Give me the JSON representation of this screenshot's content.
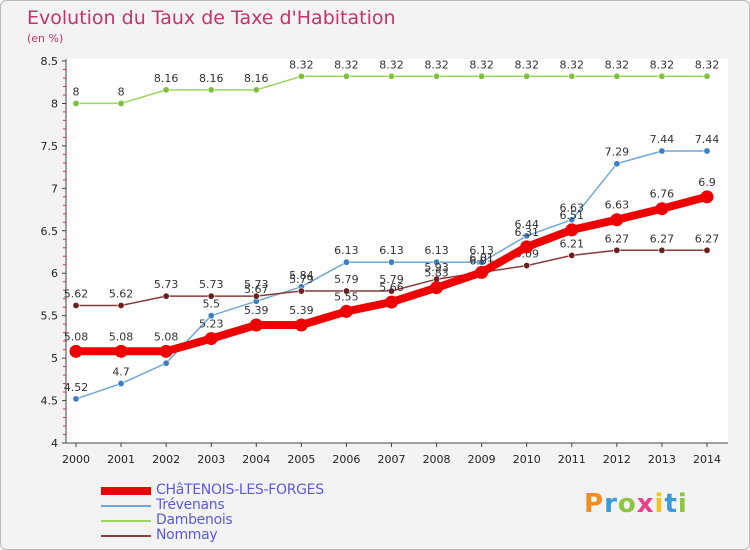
{
  "chart_data": {
    "type": "line",
    "title": "Evolution du Taux de Taxe d'Habitation",
    "ylabel": "(en %)",
    "xlabel": "",
    "ylim": [
      4,
      8.5
    ],
    "y_ticks": [
      "4",
      "4.5",
      "5",
      "5.5",
      "6",
      "6.5",
      "7",
      "7.5",
      "8",
      "8.5"
    ],
    "x": [
      "2000",
      "2001",
      "2002",
      "2003",
      "2004",
      "2005",
      "2006",
      "2007",
      "2008",
      "2009",
      "2010",
      "2011",
      "2012",
      "2013",
      "2014"
    ],
    "series": [
      {
        "name": "Dambenois",
        "color": "#99d65a",
        "marker": "#7ec13c",
        "width": 1.5,
        "values": [
          8,
          8,
          8.16,
          8.16,
          8.16,
          8.32,
          8.32,
          8.32,
          8.32,
          8.32,
          8.32,
          8.32,
          8.32,
          8.32,
          8.32
        ],
        "labels": [
          "8",
          "8",
          "8.16",
          "8.16",
          "8.16",
          "8.32",
          "8.32",
          "8.32",
          "8.32",
          "8.32",
          "8.32",
          "8.32",
          "8.32",
          "8.32",
          "8.32"
        ]
      },
      {
        "name": "Trévenans",
        "color": "#6fa7d6",
        "marker": "#3a7fc4",
        "width": 1.5,
        "values": [
          4.52,
          4.7,
          4.94,
          5.5,
          5.67,
          5.84,
          6.13,
          6.13,
          6.13,
          6.13,
          6.44,
          6.63,
          7.29,
          7.44,
          7.44
        ],
        "labels": [
          "4.52",
          "4.7",
          "",
          "5.5",
          "5.67",
          "5.84",
          "6.13",
          "6.13",
          "6.13",
          "6.13",
          "6.44",
          "6.63",
          "7.29",
          "7.44",
          "7.44"
        ]
      },
      {
        "name": "Nommay",
        "color": "#8b3a3a",
        "marker": "#6b2020",
        "width": 1.5,
        "values": [
          5.62,
          5.62,
          5.73,
          5.73,
          5.73,
          5.79,
          5.79,
          5.79,
          5.93,
          6.01,
          6.09,
          6.21,
          6.27,
          6.27,
          6.27
        ],
        "labels": [
          "5.62",
          "5.62",
          "5.73",
          "5.73",
          "5.73",
          "5.79",
          "5.79",
          "5.79",
          "5.93",
          "6.01",
          "6.09",
          "6.21",
          "6.27",
          "6.27",
          "6.27"
        ]
      },
      {
        "name": "CHâTENOIS-LES-FORGES",
        "color": "#ee0000",
        "marker": "#ee0000",
        "width": 8,
        "values": [
          5.08,
          5.08,
          5.08,
          5.23,
          5.39,
          5.39,
          5.55,
          5.66,
          5.83,
          6.01,
          6.31,
          6.51,
          6.63,
          6.76,
          6.9
        ],
        "labels": [
          "5.08",
          "5.08",
          "5.08",
          "5.23",
          "5.39",
          "5.39",
          "5.55",
          "5.66",
          "5.83",
          "6.01",
          "6.31",
          "6.51",
          "6.63",
          "6.76",
          "6.9"
        ]
      }
    ],
    "legend": [
      "CHâTENOIS-LES-FORGES",
      "Trévenans",
      "Dambenois",
      "Nommay"
    ],
    "grid": false
  },
  "branding": {
    "logo_letters": [
      "P",
      "r",
      "o",
      "x",
      "i",
      "t",
      "i"
    ]
  }
}
